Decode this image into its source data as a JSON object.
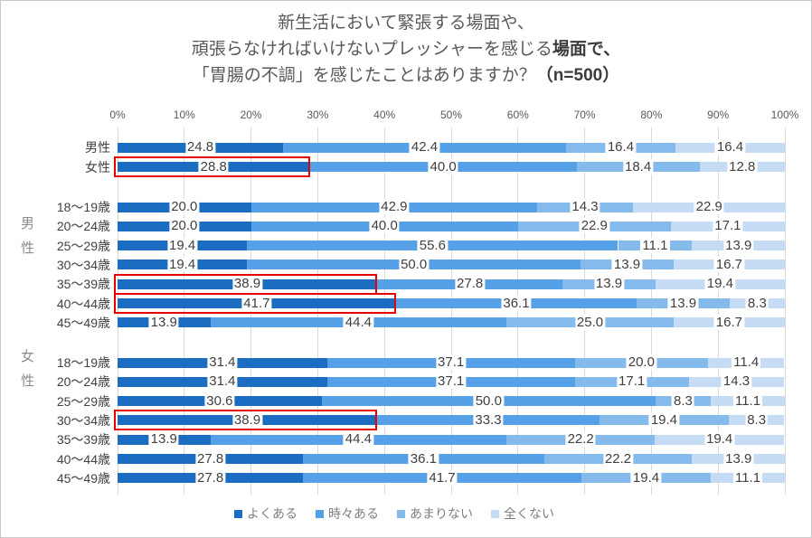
{
  "chart_data": {
    "type": "bar",
    "stacked": true,
    "orientation": "horizontal",
    "title_lines": {
      "line1": "新生活において緊張する場面や、",
      "line2_normal": "頑張らなければいけないプレッシャーを感じる",
      "line2_bold": "場面で、",
      "line3_normal": "「胃腸の不調」を感じたことはありますか？",
      "line3_bold": "（n=500）"
    },
    "x_axis": {
      "ticks": [
        "0%",
        "10%",
        "20%",
        "30%",
        "40%",
        "50%",
        "60%",
        "70%",
        "80%",
        "90%",
        "100%"
      ],
      "range": [
        0,
        100
      ],
      "grid": true
    },
    "legend": [
      "よくある",
      "時々ある",
      "あまりない",
      "全くない"
    ],
    "legend_position": "bottom",
    "colors": [
      "#1b6dc1",
      "#55a0e6",
      "#85bbec",
      "#c6dcf4"
    ],
    "highlight_color": "#e60000",
    "groups": [
      {
        "group_label": "",
        "rows": [
          {
            "label": "男性",
            "values": [
              "24.8",
              "42.4",
              "16.4",
              "16.4"
            ],
            "highlight_first_segment": false
          },
          {
            "label": "女性",
            "values": [
              "28.8",
              "40.0",
              "18.4",
              "12.8"
            ],
            "highlight_first_segment": true
          }
        ]
      },
      {
        "group_label": "男性",
        "rows": [
          {
            "label": "18〜19歳",
            "values": [
              "20.0",
              "42.9",
              "14.3",
              "22.9"
            ],
            "highlight_first_segment": false
          },
          {
            "label": "20〜24歳",
            "values": [
              "20.0",
              "40.0",
              "22.9",
              "17.1"
            ],
            "highlight_first_segment": false
          },
          {
            "label": "25〜29歳",
            "values": [
              "19.4",
              "55.6",
              "11.1",
              "13.9"
            ],
            "highlight_first_segment": false
          },
          {
            "label": "30〜34歳",
            "values": [
              "19.4",
              "50.0",
              "13.9",
              "16.7"
            ],
            "highlight_first_segment": false
          },
          {
            "label": "35〜39歳",
            "values": [
              "38.9",
              "27.8",
              "13.9",
              "19.4"
            ],
            "highlight_first_segment": true
          },
          {
            "label": "40〜44歳",
            "values": [
              "41.7",
              "36.1",
              "13.9",
              "8.3"
            ],
            "highlight_first_segment": true
          },
          {
            "label": "45〜49歳",
            "values": [
              "13.9",
              "44.4",
              "25.0",
              "16.7"
            ],
            "highlight_first_segment": false
          }
        ]
      },
      {
        "group_label": "女性",
        "rows": [
          {
            "label": "18〜19歳",
            "values": [
              "31.4",
              "37.1",
              "20.0",
              "11.4"
            ],
            "highlight_first_segment": false
          },
          {
            "label": "20〜24歳",
            "values": [
              "31.4",
              "37.1",
              "17.1",
              "14.3"
            ],
            "highlight_first_segment": false
          },
          {
            "label": "25〜29歳",
            "values": [
              "30.6",
              "50.0",
              "8.3",
              "11.1"
            ],
            "highlight_first_segment": false
          },
          {
            "label": "30〜34歳",
            "values": [
              "38.9",
              "33.3",
              "19.4",
              "8.3"
            ],
            "highlight_first_segment": true
          },
          {
            "label": "35〜39歳",
            "values": [
              "13.9",
              "44.4",
              "22.2",
              "19.4"
            ],
            "highlight_first_segment": false
          },
          {
            "label": "40〜44歳",
            "values": [
              "27.8",
              "36.1",
              "22.2",
              "13.9"
            ],
            "highlight_first_segment": false
          },
          {
            "label": "45〜49歳",
            "values": [
              "27.8",
              "41.7",
              "19.4",
              "11.1"
            ],
            "highlight_first_segment": false
          }
        ]
      }
    ]
  }
}
